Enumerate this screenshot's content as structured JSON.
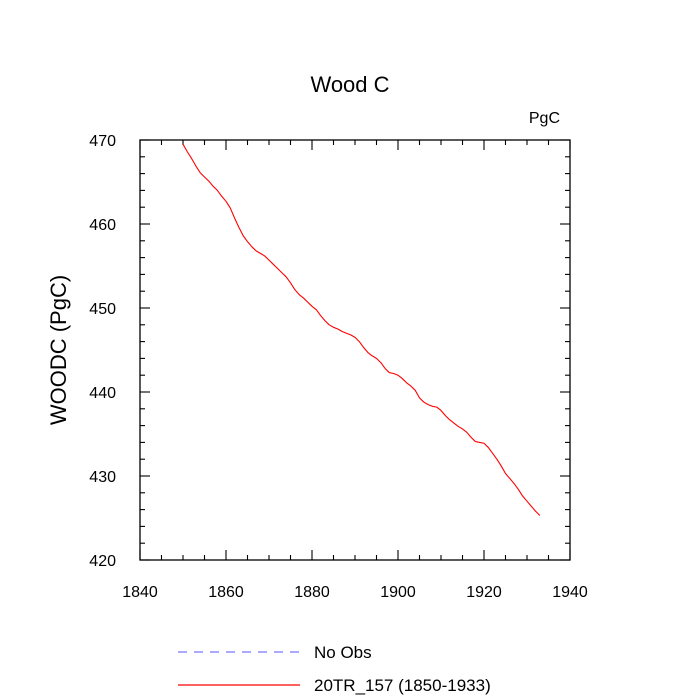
{
  "chart_data": {
    "type": "line",
    "title": "Wood C",
    "units": "PgC",
    "xlabel": "",
    "ylabel": "WOODC  (PgC)",
    "xlim": [
      1840,
      1940
    ],
    "ylim": [
      420,
      470
    ],
    "x_ticks": [
      1840,
      1860,
      1880,
      1900,
      1920,
      1940
    ],
    "y_ticks": [
      420,
      430,
      440,
      450,
      460,
      470
    ],
    "x_minor_step": 5,
    "y_minor_step": 2,
    "series": [
      {
        "name": "20TR_157 (1850-1933)",
        "color": "#ff0000",
        "style": "solid",
        "x": [
          1850,
          1851,
          1852,
          1853,
          1854,
          1855,
          1856,
          1857,
          1858,
          1859,
          1860,
          1861,
          1862,
          1863,
          1864,
          1865,
          1866,
          1867,
          1868,
          1869,
          1870,
          1871,
          1872,
          1873,
          1874,
          1875,
          1876,
          1877,
          1878,
          1879,
          1880,
          1881,
          1882,
          1883,
          1884,
          1885,
          1886,
          1887,
          1888,
          1889,
          1890,
          1891,
          1892,
          1893,
          1894,
          1895,
          1896,
          1897,
          1898,
          1899,
          1900,
          1901,
          1902,
          1903,
          1904,
          1905,
          1906,
          1907,
          1908,
          1909,
          1910,
          1911,
          1912,
          1913,
          1914,
          1915,
          1916,
          1917,
          1918,
          1919,
          1920,
          1921,
          1922,
          1923,
          1924,
          1925,
          1926,
          1927,
          1928,
          1929,
          1930,
          1931,
          1932,
          1933
        ],
        "values": [
          469.5,
          468.6,
          467.8,
          466.9,
          466.1,
          465.6,
          465.1,
          464.5,
          464.0,
          463.3,
          462.7,
          461.9,
          460.7,
          459.6,
          458.6,
          457.9,
          457.3,
          456.8,
          456.5,
          456.2,
          455.7,
          455.2,
          454.7,
          454.2,
          453.7,
          453.0,
          452.2,
          451.6,
          451.2,
          450.7,
          450.2,
          449.8,
          449.1,
          448.5,
          448.0,
          447.7,
          447.5,
          447.2,
          447.0,
          446.8,
          446.5,
          446.0,
          445.3,
          444.7,
          444.3,
          444.0,
          443.5,
          442.8,
          442.3,
          442.2,
          442.0,
          441.6,
          441.1,
          440.7,
          440.2,
          439.3,
          438.8,
          438.5,
          438.3,
          438.2,
          437.8,
          437.2,
          436.7,
          436.3,
          435.9,
          435.6,
          435.2,
          434.6,
          434.1,
          434.0,
          433.9,
          433.4,
          432.7,
          432.0,
          431.2,
          430.3,
          429.7,
          429.1,
          428.4,
          427.6,
          427.0,
          426.4,
          425.8,
          425.3
        ]
      },
      {
        "name": "No Obs",
        "color": "#7878ff",
        "style": "dashed",
        "x": [],
        "values": []
      }
    ],
    "legend": [
      "No Obs",
      "20TR_157 (1850-1933)"
    ],
    "legend_position": "bottom"
  }
}
